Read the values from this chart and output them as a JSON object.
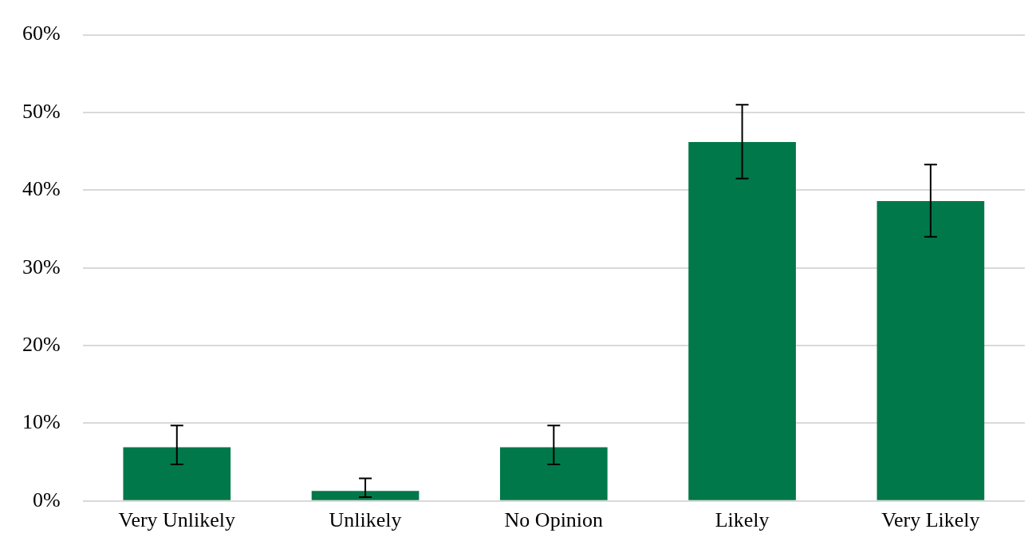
{
  "chart_data": {
    "type": "bar",
    "categories": [
      "Very Unlikely",
      "Unlikely",
      "No Opinion",
      "Likely",
      "Very Likely"
    ],
    "values": [
      6.9,
      1.3,
      6.9,
      46.2,
      38.6
    ],
    "errors": [
      [
        4.7,
        9.7
      ],
      [
        0.5,
        2.9
      ],
      [
        4.7,
        9.7
      ],
      [
        41.5,
        51.0
      ],
      [
        34.0,
        43.3
      ]
    ],
    "color": "#00784a",
    "ylim": [
      0,
      60
    ],
    "yticks": [
      {
        "value": 0,
        "label": "0%"
      },
      {
        "value": 10,
        "label": "10%"
      },
      {
        "value": 20,
        "label": "20%"
      },
      {
        "value": 30,
        "label": "30%"
      },
      {
        "value": 40,
        "label": "40%"
      },
      {
        "value": 50,
        "label": "50%"
      },
      {
        "value": 60,
        "label": "60%"
      }
    ],
    "grid": "y"
  }
}
